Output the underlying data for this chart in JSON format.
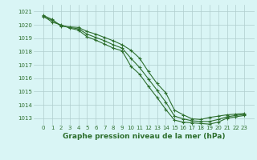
{
  "x": [
    0,
    1,
    2,
    3,
    4,
    5,
    6,
    7,
    8,
    9,
    10,
    11,
    12,
    13,
    14,
    15,
    16,
    17,
    18,
    19,
    20,
    21,
    22,
    23
  ],
  "line1": [
    1020.7,
    1020.4,
    1019.9,
    1019.85,
    1019.8,
    1019.5,
    1019.3,
    1019.05,
    1018.8,
    1018.5,
    1018.1,
    1017.5,
    1016.5,
    1015.6,
    1014.9,
    1013.6,
    1013.25,
    1012.95,
    1012.9,
    1013.05,
    1013.15,
    1013.25,
    1013.3,
    1013.35
  ],
  "line2": [
    1020.65,
    1020.2,
    1020.0,
    1019.75,
    1019.6,
    1019.1,
    1018.85,
    1018.55,
    1018.25,
    1018.05,
    1016.9,
    1016.3,
    1015.4,
    1014.55,
    1013.65,
    1012.85,
    1012.7,
    1012.65,
    1012.6,
    1012.55,
    1012.7,
    1013.0,
    1013.1,
    1013.2
  ],
  "line3": [
    1020.6,
    1020.35,
    1019.95,
    1019.8,
    1019.7,
    1019.3,
    1019.05,
    1018.8,
    1018.5,
    1018.25,
    1017.5,
    1016.8,
    1015.95,
    1015.1,
    1014.2,
    1013.15,
    1012.95,
    1012.8,
    1012.75,
    1012.75,
    1012.9,
    1013.1,
    1013.2,
    1013.28
  ],
  "line_color": "#2d6e2d",
  "bg_color": "#d9f5f5",
  "grid_color": "#b0cece",
  "xlabel": "Graphe pression niveau de la mer (hPa)",
  "ylim": [
    1012.5,
    1021.5
  ],
  "yticks": [
    1013,
    1014,
    1015,
    1016,
    1017,
    1018,
    1019,
    1020,
    1021
  ],
  "xticks": [
    0,
    1,
    2,
    3,
    4,
    5,
    6,
    7,
    8,
    9,
    10,
    11,
    12,
    13,
    14,
    15,
    16,
    17,
    18,
    19,
    20,
    21,
    22,
    23
  ],
  "tick_fontsize": 5,
  "xlabel_fontsize": 6.5,
  "marker": "+",
  "markersize": 3,
  "linewidth": 0.8
}
